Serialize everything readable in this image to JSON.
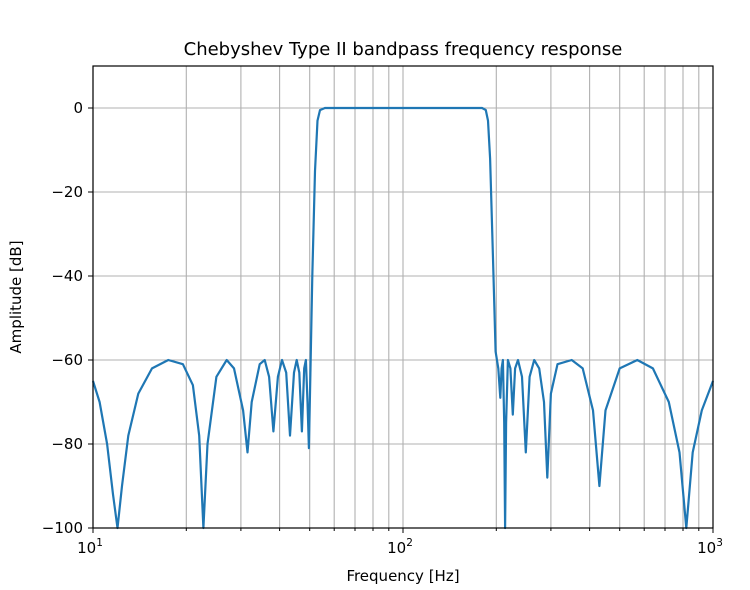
{
  "chart_data": {
    "type": "line",
    "title": "Chebyshev Type II bandpass frequency response",
    "xlabel": "Frequency [Hz]",
    "ylabel": "Amplitude [dB]",
    "xscale": "log",
    "xlim": [
      10,
      1000
    ],
    "ylim": [
      -100,
      10
    ],
    "grid": true,
    "grid_which": "both",
    "x_ticks": [
      {
        "value": 10,
        "base": "10",
        "exp": "1"
      },
      {
        "value": 100,
        "base": "10",
        "exp": "2"
      },
      {
        "value": 1000,
        "base": "10",
        "exp": "3"
      }
    ],
    "y_ticks": [
      0,
      -20,
      -40,
      -60,
      -80,
      -100
    ],
    "y_tick_labels": [
      "0",
      "−20",
      "−40",
      "−60",
      "−80",
      "−100"
    ],
    "series": [
      {
        "name": "Chebyshev Type II bandpass",
        "color": "#1f77b4",
        "passband_hz": [
          50,
          200
        ],
        "stopband_attenuation_db": -60,
        "points": [
          [
            10.0,
            -65
          ],
          [
            10.5,
            -70
          ],
          [
            11.1,
            -80
          ],
          [
            11.6,
            -92
          ],
          [
            12.0,
            -100
          ],
          [
            12.4,
            -90
          ],
          [
            13.0,
            -78
          ],
          [
            14.0,
            -68
          ],
          [
            15.5,
            -62
          ],
          [
            17.5,
            -60
          ],
          [
            19.5,
            -61
          ],
          [
            21.0,
            -66
          ],
          [
            22.0,
            -78
          ],
          [
            22.7,
            -100
          ],
          [
            23.4,
            -80
          ],
          [
            25.0,
            -64
          ],
          [
            27.0,
            -60
          ],
          [
            28.5,
            -62
          ],
          [
            30.5,
            -72
          ],
          [
            31.5,
            -82
          ],
          [
            32.5,
            -70
          ],
          [
            34.5,
            -61
          ],
          [
            35.8,
            -60
          ],
          [
            37.0,
            -64
          ],
          [
            38.2,
            -77
          ],
          [
            39.5,
            -64
          ],
          [
            40.7,
            -60
          ],
          [
            42.0,
            -63
          ],
          [
            43.2,
            -78
          ],
          [
            44.5,
            -63
          ],
          [
            45.4,
            -60
          ],
          [
            46.3,
            -63
          ],
          [
            47.2,
            -77
          ],
          [
            48.0,
            -62
          ],
          [
            48.6,
            -60
          ],
          [
            49.2,
            -70
          ],
          [
            49.7,
            -81
          ],
          [
            50.3,
            -62
          ],
          [
            51.0,
            -40
          ],
          [
            52.0,
            -15
          ],
          [
            53.0,
            -3
          ],
          [
            54.0,
            -0.5
          ],
          [
            56.0,
            0
          ],
          [
            100.0,
            0
          ],
          [
            180.0,
            0
          ],
          [
            185.0,
            -0.5
          ],
          [
            188.0,
            -3
          ],
          [
            191.0,
            -12
          ],
          [
            195.0,
            -35
          ],
          [
            199.0,
            -58
          ],
          [
            203.0,
            -62
          ],
          [
            206.0,
            -69
          ],
          [
            208.0,
            -62
          ],
          [
            210.0,
            -60
          ],
          [
            212.0,
            -75
          ],
          [
            213.5,
            -100
          ],
          [
            215.0,
            -75
          ],
          [
            218.0,
            -60
          ],
          [
            222.0,
            -62
          ],
          [
            226.0,
            -73
          ],
          [
            230.0,
            -62
          ],
          [
            235.0,
            -60
          ],
          [
            242.0,
            -64
          ],
          [
            249.0,
            -82
          ],
          [
            256.0,
            -64
          ],
          [
            265.0,
            -60
          ],
          [
            275.0,
            -62
          ],
          [
            285.0,
            -70
          ],
          [
            292.0,
            -88
          ],
          [
            300.0,
            -68
          ],
          [
            315.0,
            -61
          ],
          [
            350.0,
            -60
          ],
          [
            380.0,
            -62
          ],
          [
            410.0,
            -72
          ],
          [
            430.0,
            -90
          ],
          [
            450.0,
            -72
          ],
          [
            500.0,
            -62
          ],
          [
            570.0,
            -60
          ],
          [
            640.0,
            -62
          ],
          [
            720.0,
            -70
          ],
          [
            780.0,
            -82
          ],
          [
            820.0,
            -100
          ],
          [
            860.0,
            -82
          ],
          [
            920.0,
            -72
          ],
          [
            1000.0,
            -65
          ]
        ]
      }
    ]
  }
}
